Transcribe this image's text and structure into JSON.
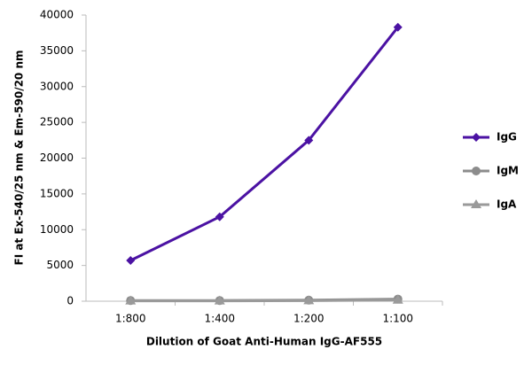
{
  "chart_data": {
    "type": "line",
    "y_label": "FI at Ex-540/25 nm & Em-590/20 nm",
    "x_label": "Dilution of Goat Anti-Human IgG-AF555",
    "categories": [
      "1:800",
      "1:400",
      "1:200",
      "1:100"
    ],
    "series": [
      {
        "name": "IgG",
        "color": "#4b12a3",
        "marker": "diamond",
        "values": [
          5700,
          11800,
          22500,
          38300
        ]
      },
      {
        "name": "IgM",
        "color": "#8c8c8c",
        "marker": "circle",
        "values": [
          100,
          100,
          150,
          300
        ]
      },
      {
        "name": "IgA",
        "color": "#9a9a9a",
        "marker": "triangle",
        "values": [
          50,
          50,
          80,
          150
        ]
      }
    ],
    "ylim": [
      0,
      40000
    ],
    "yticks": [
      0,
      5000,
      10000,
      15000,
      20000,
      25000,
      30000,
      35000,
      40000
    ],
    "grid": false,
    "legend": "right"
  }
}
